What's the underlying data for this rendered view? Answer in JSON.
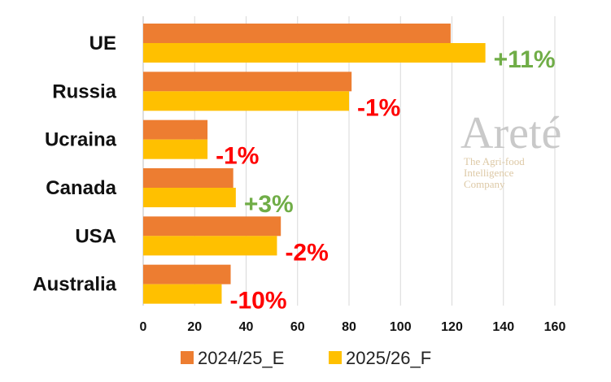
{
  "chart_data": {
    "type": "bar",
    "orientation": "horizontal",
    "categories": [
      "UE",
      "Russia",
      "Ucraina",
      "Canada",
      "USA",
      "Australia"
    ],
    "series": [
      {
        "name": "2024/25_E",
        "values": [
          119.5,
          81,
          25,
          35,
          53.5,
          34
        ],
        "color": "#ED7D31"
      },
      {
        "name": "2025/26_F",
        "values": [
          133,
          80,
          25,
          36,
          52,
          30.5
        ],
        "color": "#FFC000"
      }
    ],
    "change_labels": [
      {
        "text": "+11%",
        "color": "#70AD47"
      },
      {
        "text": "-1%",
        "color": "#FF0000"
      },
      {
        "text": "-1%",
        "color": "#FF0000"
      },
      {
        "text": "+3%",
        "color": "#70AD47"
      },
      {
        "text": "-2%",
        "color": "#FF0000"
      },
      {
        "text": "-10%",
        "color": "#FF0000"
      }
    ],
    "xticks": [
      "0",
      "20",
      "40",
      "60",
      "80",
      "100",
      "120",
      "140",
      "160"
    ],
    "xlim": [
      0,
      160
    ],
    "grid": "vertical",
    "legend_position": "bottom"
  },
  "watermark": {
    "name": "Areté",
    "tagline": [
      "The Agri-food",
      "Intelligence",
      "Company"
    ]
  }
}
